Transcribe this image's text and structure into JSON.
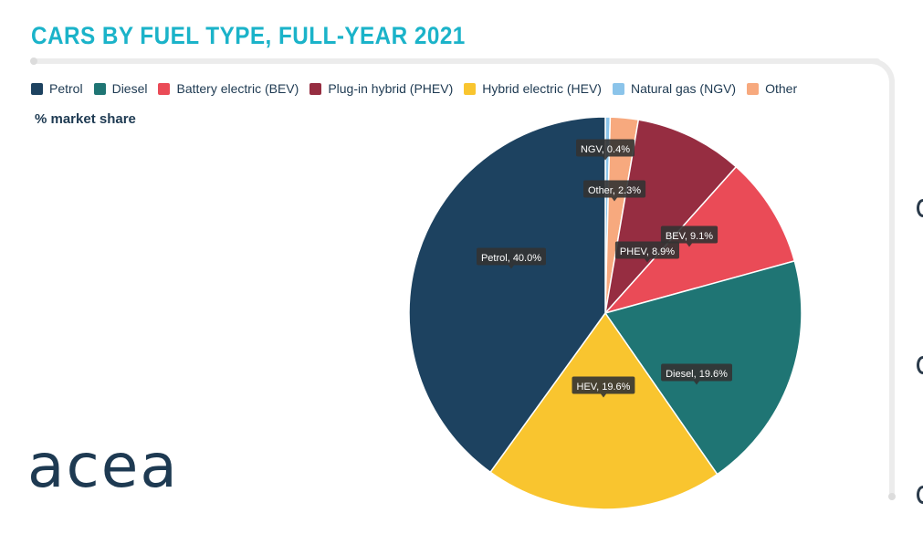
{
  "title": "CARS BY FUEL TYPE, FULL-YEAR 2021",
  "subtitle": "% market share",
  "logo_text": "acea",
  "chart_data": {
    "type": "pie",
    "title": "CARS BY FUEL TYPE, FULL-YEAR 2021",
    "unit": "% market share",
    "legend_position": "top-left",
    "legend": [
      {
        "name": "Petrol",
        "color": "#1d4260"
      },
      {
        "name": "Diesel",
        "color": "#1f7574"
      },
      {
        "name": "Battery electric (BEV)",
        "color": "#ea4b57"
      },
      {
        "name": "Plug-in hybrid (PHEV)",
        "color": "#962d41"
      },
      {
        "name": "Hybrid electric (HEV)",
        "color": "#f9c52f"
      },
      {
        "name": "Natural gas (NGV)",
        "color": "#8bc4ea"
      },
      {
        "name": "Other",
        "color": "#f7a97e"
      }
    ],
    "slices": [
      {
        "key": "ngv",
        "value": 0.4,
        "color": "#8bc4ea",
        "label": "NGV, 0.4%"
      },
      {
        "key": "other",
        "value": 2.3,
        "color": "#f7a97e",
        "label": "Other, 2.3%"
      },
      {
        "key": "phev",
        "value": 8.9,
        "color": "#962d41",
        "label": "PHEV, 8.9%"
      },
      {
        "key": "bev",
        "value": 9.1,
        "color": "#ea4b57",
        "label": "BEV, 9.1%"
      },
      {
        "key": "diesel",
        "value": 19.6,
        "color": "#1f7574",
        "label": "Diesel, 19.6%"
      },
      {
        "key": "hev",
        "value": 19.6,
        "color": "#f9c52f",
        "label": "HEV, 19.6%"
      },
      {
        "key": "petrol",
        "value": 40.0,
        "color": "#1d4260",
        "label": "Petrol, 40.0%"
      }
    ]
  }
}
